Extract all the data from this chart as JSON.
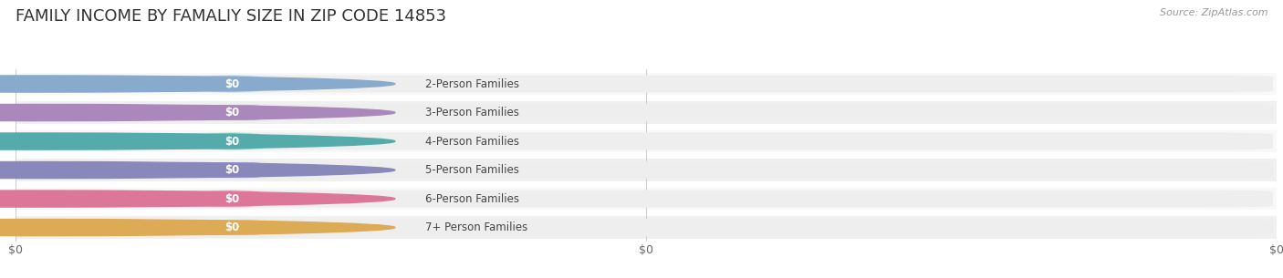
{
  "title": "FAMILY INCOME BY FAMALIY SIZE IN ZIP CODE 14853",
  "source": "Source: ZipAtlas.com",
  "categories": [
    "2-Person Families",
    "3-Person Families",
    "4-Person Families",
    "5-Person Families",
    "6-Person Families",
    "7+ Person Families"
  ],
  "values": [
    0,
    0,
    0,
    0,
    0,
    0
  ],
  "value_labels": [
    "$0",
    "$0",
    "$0",
    "$0",
    "$0",
    "$0"
  ],
  "bar_colors": [
    "#a8c8e8",
    "#c8a8d8",
    "#78ccc0",
    "#a8a8d8",
    "#f0a0b8",
    "#f8cc88"
  ],
  "dot_colors": [
    "#88aacc",
    "#aa88bb",
    "#55aaaa",
    "#8888bb",
    "#dd7799",
    "#ddaa55"
  ],
  "bg_color": "#ffffff",
  "row_alt_colors": [
    "#f8f8f8",
    "#f0f0f0"
  ],
  "track_color": "#eeeeee",
  "title_fontsize": 13,
  "label_fontsize": 8.5,
  "value_fontsize": 8.5,
  "source_fontsize": 8,
  "xtick_labels": [
    "$0",
    "$0",
    "$0"
  ],
  "xtick_positions": [
    0.0,
    0.5,
    1.0
  ]
}
